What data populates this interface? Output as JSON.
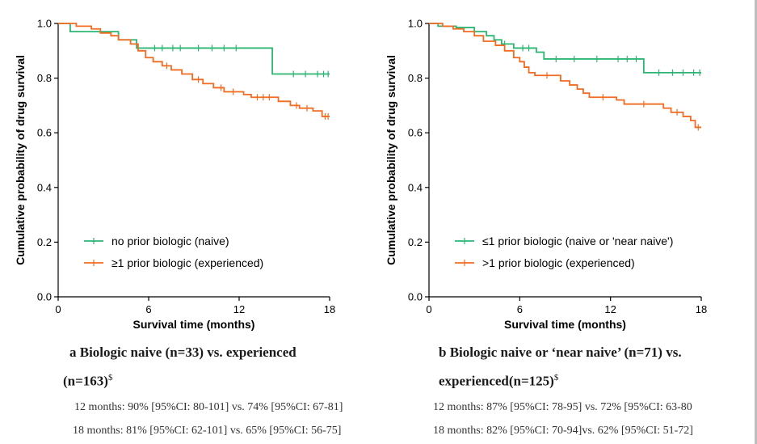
{
  "chart_data": [
    {
      "type": "line",
      "subtype": "kaplan-meier-step",
      "title": "",
      "xlabel": "Survival time (months)",
      "ylabel": "Cumulative probability of drug survival",
      "xlim": [
        0,
        18
      ],
      "ylim": [
        0.0,
        1.0
      ],
      "xticks": [
        "0",
        "6",
        "12",
        "18"
      ],
      "yticks": [
        "0.0",
        "0.2",
        "0.4",
        "0.6",
        "0.8",
        "1.0"
      ],
      "grid": false,
      "legend_position": "bottom-left",
      "colors": {
        "naive": "#2bb673",
        "experienced": "#f26b21"
      },
      "series": [
        {
          "name": "no prior biologic (naive)",
          "color": "#2bb673",
          "steps": [
            [
              0,
              1.0
            ],
            [
              0.8,
              0.97
            ],
            [
              4,
              0.94
            ],
            [
              5.2,
              0.91
            ],
            [
              14.2,
              0.91
            ],
            [
              14.2,
              0.815
            ],
            [
              18,
              0.815
            ]
          ],
          "censor_x": [
            6.4,
            6.9,
            7.6,
            8.1,
            9.3,
            10.2,
            11.0,
            11.8,
            15.6,
            16.4,
            17.2,
            17.6,
            17.9
          ]
        },
        {
          "name": "≥1 prior biologic (experienced)",
          "color": "#f26b21",
          "steps": [
            [
              0,
              1.0
            ],
            [
              1.2,
              0.99
            ],
            [
              2.2,
              0.98
            ],
            [
              2.8,
              0.965
            ],
            [
              3.5,
              0.955
            ],
            [
              4.0,
              0.94
            ],
            [
              4.8,
              0.925
            ],
            [
              5.3,
              0.9
            ],
            [
              5.8,
              0.875
            ],
            [
              6.3,
              0.86
            ],
            [
              6.9,
              0.845
            ],
            [
              7.5,
              0.83
            ],
            [
              8.2,
              0.815
            ],
            [
              8.9,
              0.795
            ],
            [
              9.6,
              0.78
            ],
            [
              10.3,
              0.765
            ],
            [
              11.0,
              0.75
            ],
            [
              12.3,
              0.74
            ],
            [
              12.8,
              0.73
            ],
            [
              14.2,
              0.73
            ],
            [
              14.6,
              0.715
            ],
            [
              15.4,
              0.7
            ],
            [
              16.0,
              0.69
            ],
            [
              16.9,
              0.68
            ],
            [
              17.5,
              0.66
            ],
            [
              18,
              0.66
            ]
          ],
          "censor_x": [
            7.2,
            9.3,
            10.8,
            11.6,
            13.2,
            13.6,
            14.0,
            15.8,
            16.5,
            17.7,
            17.9
          ]
        }
      ],
      "caption": "a  Biologic naive (n=33) vs. experienced",
      "caption_line2": "(n=163)",
      "caption_symbol": "$",
      "stats": [
        "12 months: 90% [95%CI: 80-101] vs. 74% [95%CI: 67-81]",
        "18 months: 81% [95%CI: 62-101] vs. 65% [95%CI: 56-75]"
      ]
    },
    {
      "type": "line",
      "subtype": "kaplan-meier-step",
      "title": "",
      "xlabel": "Survival time (months)",
      "ylabel": "Cumulative probability of drug survival",
      "xlim": [
        0,
        18
      ],
      "ylim": [
        0.0,
        1.0
      ],
      "xticks": [
        "0",
        "6",
        "12",
        "18"
      ],
      "yticks": [
        "0.0",
        "0.2",
        "0.4",
        "0.6",
        "0.8",
        "1.0"
      ],
      "grid": false,
      "legend_position": "bottom-left",
      "colors": {
        "naive": "#2bb673",
        "experienced": "#f26b21"
      },
      "series": [
        {
          "name": "≤1 prior biologic (naive or 'near naive')",
          "color": "#2bb673",
          "steps": [
            [
              0,
              1.0
            ],
            [
              0.6,
              0.99
            ],
            [
              1.8,
              0.985
            ],
            [
              3.0,
              0.97
            ],
            [
              3.8,
              0.955
            ],
            [
              4.3,
              0.94
            ],
            [
              4.8,
              0.925
            ],
            [
              5.6,
              0.91
            ],
            [
              7.1,
              0.895
            ],
            [
              7.6,
              0.87
            ],
            [
              14.2,
              0.87
            ],
            [
              14.2,
              0.82
            ],
            [
              18,
              0.82
            ]
          ],
          "censor_x": [
            5.0,
            6.2,
            6.6,
            8.4,
            9.6,
            11.1,
            12.5,
            13.1,
            13.7,
            15.2,
            16.1,
            16.8,
            17.5,
            17.9
          ]
        },
        {
          "name": ">1 prior biologic (experienced)",
          "color": "#f26b21",
          "steps": [
            [
              0,
              1.0
            ],
            [
              0.9,
              0.99
            ],
            [
              1.6,
              0.98
            ],
            [
              2.3,
              0.97
            ],
            [
              3.0,
              0.955
            ],
            [
              3.6,
              0.935
            ],
            [
              4.4,
              0.92
            ],
            [
              5.0,
              0.9
            ],
            [
              5.6,
              0.875
            ],
            [
              6.0,
              0.86
            ],
            [
              6.3,
              0.84
            ],
            [
              6.6,
              0.82
            ],
            [
              7.0,
              0.81
            ],
            [
              8.7,
              0.79
            ],
            [
              9.3,
              0.775
            ],
            [
              9.8,
              0.76
            ],
            [
              10.2,
              0.745
            ],
            [
              10.6,
              0.73
            ],
            [
              12.4,
              0.72
            ],
            [
              12.9,
              0.705
            ],
            [
              15.2,
              0.705
            ],
            [
              15.5,
              0.69
            ],
            [
              16.0,
              0.675
            ],
            [
              16.8,
              0.66
            ],
            [
              17.3,
              0.645
            ],
            [
              17.6,
              0.62
            ],
            [
              18,
              0.62
            ]
          ],
          "censor_x": [
            7.8,
            11.5,
            14.2,
            16.4,
            17.8
          ]
        }
      ],
      "caption": "b  Biologic naive or ‘near naive’ (n=71) vs.",
      "caption_line2": "experienced(n=125)",
      "caption_symbol": "$",
      "stats": [
        "12 months: 87% [95%CI: 78-95] vs. 72% [95%CI: 63-80",
        "18 months: 82% [95%CI: 70-94]vs. 62% [95%CI: 51-72]"
      ]
    }
  ]
}
